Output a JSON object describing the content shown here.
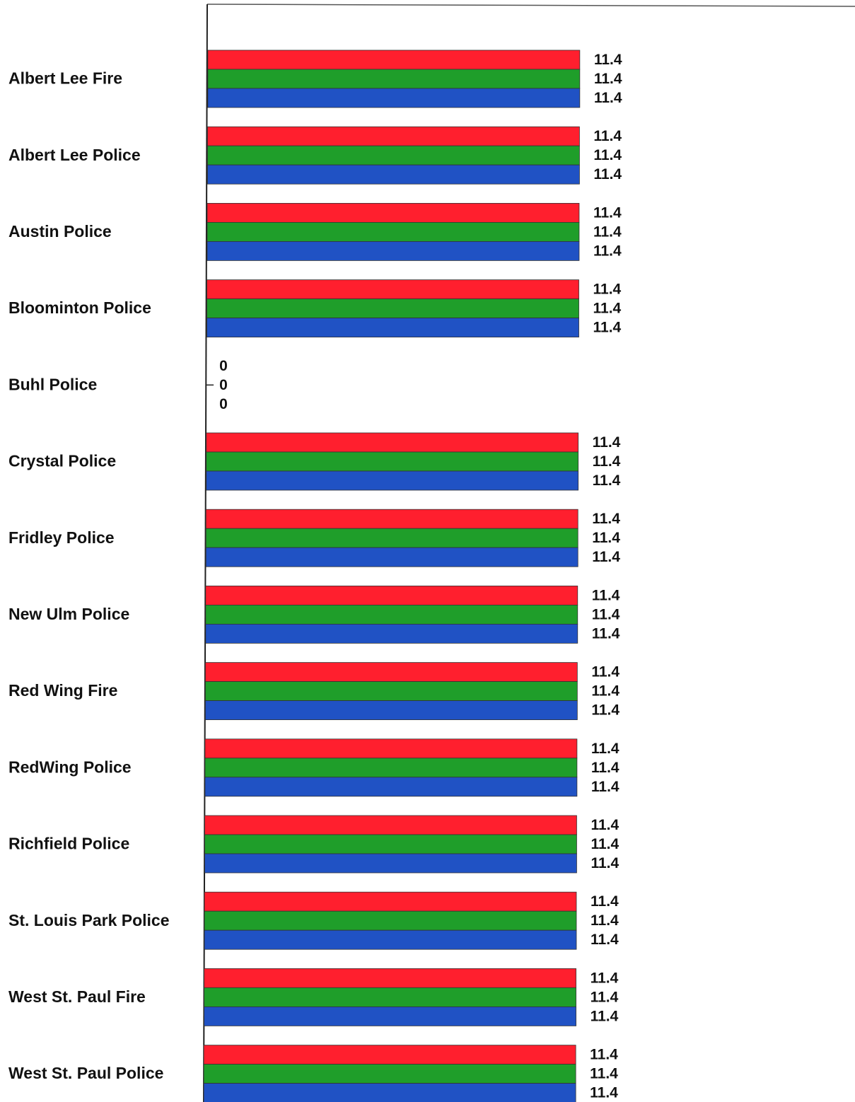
{
  "chart_data": {
    "type": "bar",
    "orientation": "horizontal",
    "categories": [
      "Albert Lee Fire",
      "Albert Lee Police",
      "Austin Police",
      "Bloominton Police",
      "Buhl Police",
      "Crystal Police",
      "Fridley Police",
      "New Ulm Police",
      "Red Wing Fire",
      "RedWing Police",
      "Richfield Police",
      "St. Louis Park Police",
      "West St. Paul Fire",
      "West St. Paul Police"
    ],
    "series": [
      {
        "color": "#ff1f2e",
        "values": [
          11.4,
          11.4,
          11.4,
          11.4,
          0,
          11.4,
          11.4,
          11.4,
          11.4,
          11.4,
          11.4,
          11.4,
          11.4,
          11.4
        ]
      },
      {
        "color": "#1f9e2a",
        "values": [
          11.4,
          11.4,
          11.4,
          11.4,
          0,
          11.4,
          11.4,
          11.4,
          11.4,
          11.4,
          11.4,
          11.4,
          11.4,
          11.4
        ]
      },
      {
        "color": "#2052c4",
        "values": [
          11.4,
          11.4,
          11.4,
          11.4,
          0,
          11.4,
          11.4,
          11.4,
          11.4,
          11.4,
          11.4,
          11.4,
          11.4,
          11.4
        ]
      }
    ],
    "xlim": [
      0,
      11.4
    ],
    "data_labels": true,
    "grid": false,
    "legend": "none"
  }
}
